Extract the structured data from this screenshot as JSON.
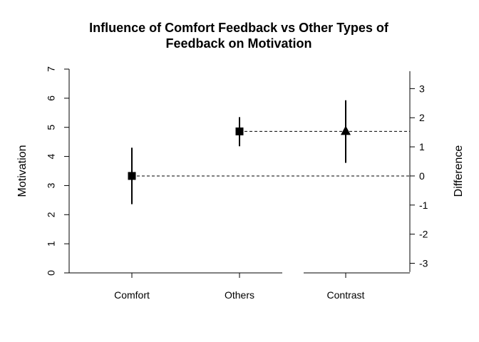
{
  "chart_data": {
    "type": "scatter",
    "title": [
      "Influence of Comfort Feedback vs Other Types of",
      "Feedback on Motivation"
    ],
    "ylabel": "Motivation",
    "y2label": "Difference",
    "categories": [
      "Comfort",
      "Others",
      "Contrast"
    ],
    "ylim": [
      0,
      7
    ],
    "yticks": [
      "0",
      "1",
      "2",
      "3",
      "4",
      "5",
      "6",
      "7"
    ],
    "y2lim": [
      -3,
      3
    ],
    "y2ticks": [
      "-3",
      "-2",
      "-1",
      "0",
      "1",
      "2",
      "3"
    ],
    "groups": [
      {
        "category": "Comfort",
        "mean": 3.33,
        "low": 2.36,
        "high": 4.3,
        "marker": "square"
      },
      {
        "category": "Others",
        "mean": 4.86,
        "low": 4.35,
        "high": 5.35,
        "marker": "square"
      }
    ],
    "difference": {
      "category": "Contrast",
      "value": 1.53,
      "low": 0.45,
      "high": 2.6,
      "marker": "triangle"
    },
    "grid": false,
    "legend": "none"
  }
}
